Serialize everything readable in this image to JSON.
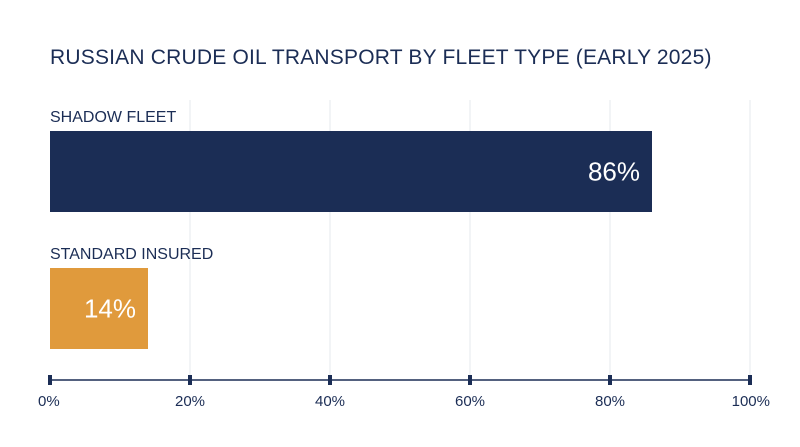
{
  "chart_data": {
    "type": "bar",
    "orientation": "horizontal",
    "title": "RUSSIAN CRUDE OIL TRANSPORT BY FLEET TYPE (EARLY 2025)",
    "categories": [
      "SHADOW FLEET",
      "STANDARD INSURED"
    ],
    "values": [
      86,
      14
    ],
    "value_labels": [
      "86%",
      "14%"
    ],
    "colors": [
      "#1b2d55",
      "#e09a3c"
    ],
    "xlim": [
      0,
      100
    ],
    "x_ticks": [
      0,
      20,
      40,
      60,
      80,
      100
    ],
    "x_tick_labels": [
      "0%",
      "20%",
      "40%",
      "60%",
      "80%",
      "100%"
    ],
    "grid": true
  }
}
